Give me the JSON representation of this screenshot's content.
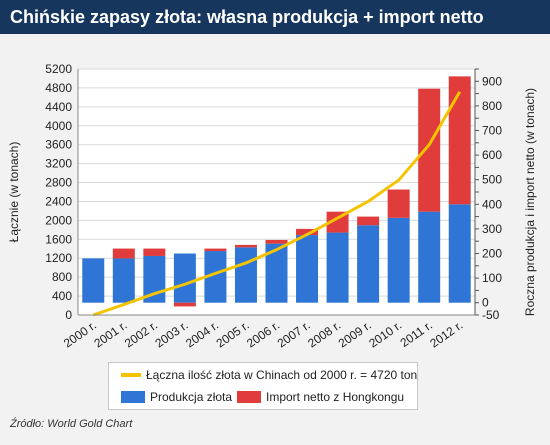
{
  "title": "Chińskie zapasy złota: własna produkcja + import netto",
  "source": "Źródło: World Gold Chart",
  "colors": {
    "production": "#2e75d6",
    "import": "#e03c3c",
    "total": "#f5c400",
    "title_bg": "#17365d"
  },
  "chart_data": {
    "type": "bar",
    "categories": [
      "2000 r.",
      "2001 r.",
      "2002 r.",
      "2003 r.",
      "2004 r.",
      "2005 r.",
      "2006 r.",
      "2007 r.",
      "2008 r.",
      "2009 r.",
      "2010 r.",
      "2011 r.",
      "2012 r."
    ],
    "ylabel_left": "Łącznie (w tonach)",
    "ylabel_right": "Roczna produkcja i import netto (w tonach)",
    "left_axis": {
      "min": 0,
      "max": 5200,
      "ticks": [
        0,
        400,
        800,
        1200,
        1600,
        2000,
        2400,
        2800,
        3200,
        3600,
        4000,
        4400,
        4800,
        5200
      ]
    },
    "right_axis": {
      "min": -50,
      "max": 950,
      "ticks": [
        -50,
        0,
        50,
        100,
        150,
        200,
        250,
        300,
        350,
        400,
        450,
        500,
        550,
        600,
        650,
        700,
        750,
        800,
        850,
        900,
        950
      ],
      "labeled": [
        -50,
        0,
        100,
        200,
        300,
        400,
        500,
        600,
        700,
        800,
        900
      ]
    },
    "series": [
      {
        "name": "Produkcja złota",
        "axis": "right",
        "kind": "bar",
        "values": [
          180,
          180,
          190,
          200,
          210,
          225,
          240,
          275,
          285,
          315,
          345,
          370,
          400
        ]
      },
      {
        "name": "Import netto z Hongkongu",
        "axis": "right",
        "kind": "bar",
        "values": [
          0,
          40,
          30,
          -15,
          10,
          10,
          15,
          25,
          85,
          35,
          115,
          500,
          520
        ]
      },
      {
        "name": "Łączna ilość złota w Chinach od 2000 r. = 4720 ton",
        "axis": "left",
        "kind": "line",
        "values": [
          0,
          220,
          450,
          650,
          880,
          1100,
          1380,
          1700,
          2050,
          2400,
          2850,
          3600,
          4720
        ]
      }
    ],
    "grid": true
  }
}
